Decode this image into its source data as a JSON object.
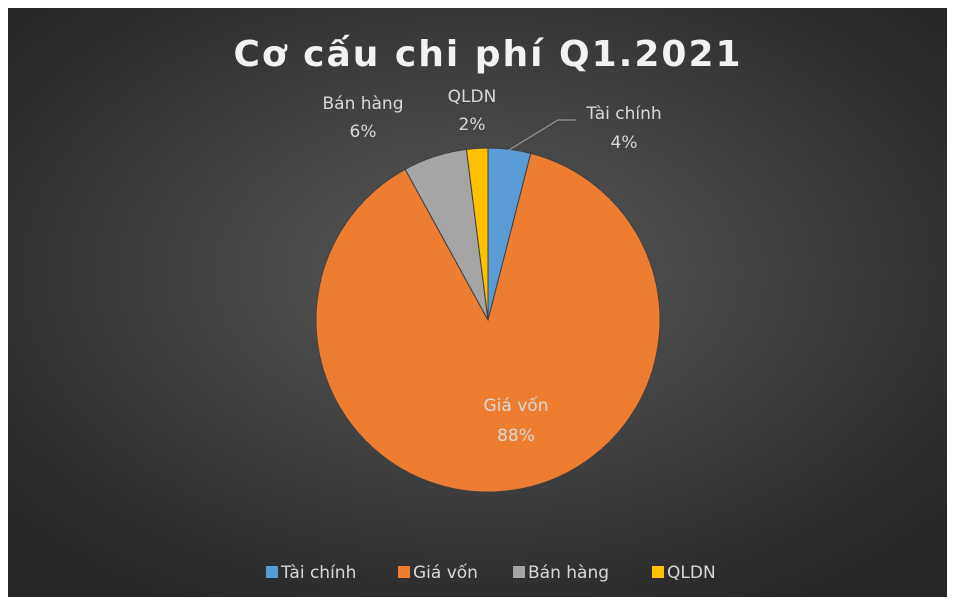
{
  "chart_data": {
    "type": "pie",
    "title": "Cơ cấu chi phí Q1.2021",
    "categories": [
      "Tài chính",
      "Giá vốn",
      "Bán hàng",
      "QLDN"
    ],
    "values": [
      4,
      88,
      6,
      2
    ],
    "value_labels": [
      "4%",
      "88%",
      "6%",
      "2%"
    ],
    "colors": [
      "#5b9bd5",
      "#ed7d31",
      "#a5a5a5",
      "#ffc000"
    ],
    "legend": "bottom"
  }
}
